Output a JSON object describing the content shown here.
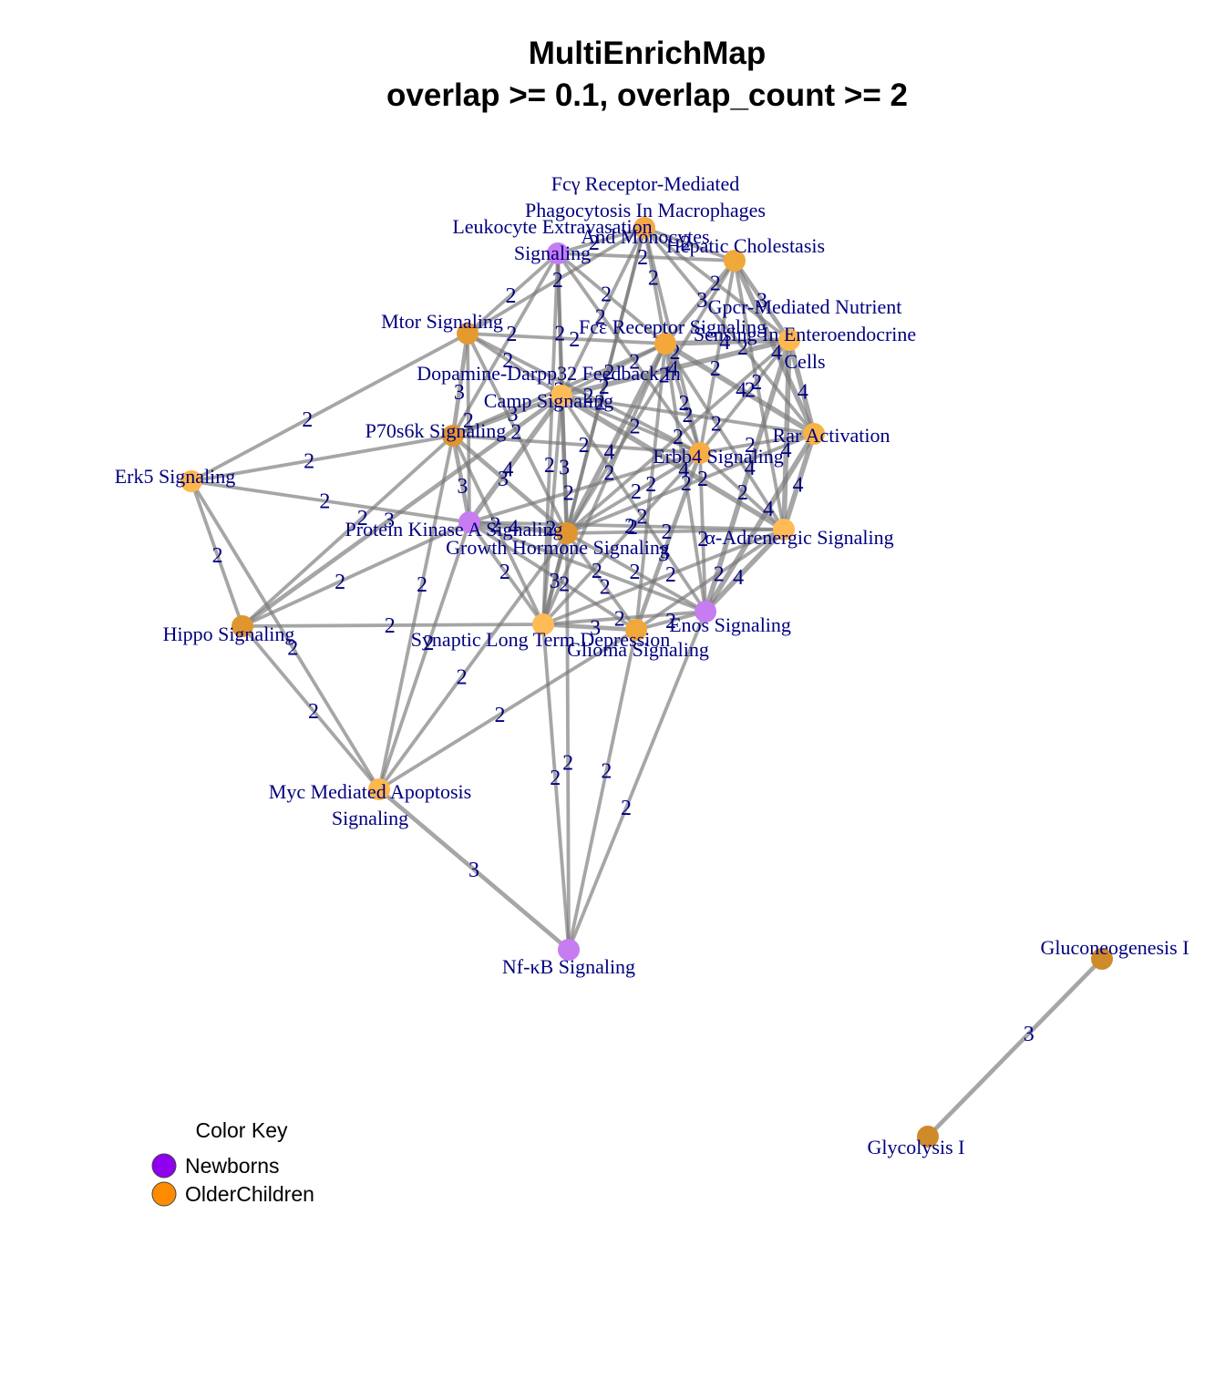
{
  "title_line1": "MultiEnrichMap",
  "title_line2": "overlap >= 0.1, overlap_count >= 2",
  "colors": {
    "newborns": "#9400ff",
    "older_children": "#ff8c00",
    "edge": "#777777",
    "label": "#000080"
  },
  "legend": {
    "title": "Color Key",
    "items": [
      {
        "label": "Newborns",
        "color": "#8f00f0"
      },
      {
        "label": "OlderChildren",
        "color": "#ff8c00"
      }
    ]
  },
  "nodes": [
    {
      "id": "fcg",
      "label": [
        "Fcγ Receptor-Mediated",
        "Phagocytosis In Macrophages",
        "And Monocytes"
      ],
      "color": "#f5a844"
    },
    {
      "id": "leuk",
      "label": [
        "Leukocyte Extravasation",
        "Signaling"
      ],
      "color": "#c77cf2"
    },
    {
      "id": "hep",
      "label": [
        "Hepatic Cholestasis"
      ],
      "color": "#f0a83a"
    },
    {
      "id": "mtor",
      "label": [
        "Mtor Signaling"
      ],
      "color": "#e59a30"
    },
    {
      "id": "fce",
      "label": [
        "Fcε Receptor Signaling"
      ],
      "color": "#f4a83a"
    },
    {
      "id": "gpcr",
      "label": [
        "Gpcr-Mediated Nutrient",
        "Sensing In Enteroendocrine",
        "Cells"
      ],
      "color": "#ffb84d"
    },
    {
      "id": "darpp",
      "label": [
        "Dopamine-Darpp32 Feedback In",
        "Camp Signaling"
      ],
      "color": "#ffbb55"
    },
    {
      "id": "p70",
      "label": [
        "P70s6k Signaling"
      ],
      "color": "#e0952e"
    },
    {
      "id": "rar",
      "label": [
        "Rar Activation"
      ],
      "color": "#f7b345"
    },
    {
      "id": "erk5",
      "label": [
        "Erk5 Signaling"
      ],
      "color": "#ffb84d"
    },
    {
      "id": "erbb4",
      "label": [
        "Erbb4 Signaling"
      ],
      "color": "#f7ad42"
    },
    {
      "id": "pka",
      "label": [
        "Protein Kinase A Signaling"
      ],
      "color": "#c77cf2"
    },
    {
      "id": "gh",
      "label": [
        "Growth Hormone Signaling"
      ],
      "color": "#e0952e"
    },
    {
      "id": "alpha",
      "label": [
        "α-Adrenergic Signaling"
      ],
      "color": "#ffbb55"
    },
    {
      "id": "enos",
      "label": [
        "Enos Signaling"
      ],
      "color": "#c77cf2"
    },
    {
      "id": "hippo",
      "label": [
        "Hippo Signaling"
      ],
      "color": "#e0952e"
    },
    {
      "id": "sltd",
      "label": [
        "Synaptic Long Term Depression"
      ],
      "color": "#ffbb55"
    },
    {
      "id": "glioma",
      "label": [
        "Glioma Signaling"
      ],
      "color": "#f0a83a"
    },
    {
      "id": "myc",
      "label": [
        "Myc Mediated Apoptosis",
        "Signaling"
      ],
      "color": "#ffb84d"
    },
    {
      "id": "nfkb",
      "label": [
        "Nf-κB Signaling"
      ],
      "color": "#c77cf2"
    },
    {
      "id": "gluco",
      "label": [
        "Gluconeogenesis I"
      ],
      "color": "#cf8a2a"
    },
    {
      "id": "glyco",
      "label": [
        "Glycolysis I"
      ],
      "color": "#cf8a2a"
    }
  ],
  "edges": [
    {
      "s": "erk5",
      "t": "mtor",
      "w": 2
    },
    {
      "s": "erk5",
      "t": "p70",
      "w": 2
    },
    {
      "s": "erk5",
      "t": "pka",
      "w": 2
    },
    {
      "s": "erk5",
      "t": "hippo",
      "w": 2
    },
    {
      "s": "erk5",
      "t": "myc",
      "w": 2
    },
    {
      "s": "hippo",
      "t": "p70",
      "w": 2
    },
    {
      "s": "hippo",
      "t": "pka",
      "w": 2
    },
    {
      "s": "hippo",
      "t": "darpp",
      "w": 3
    },
    {
      "s": "hippo",
      "t": "sltd",
      "w": 2
    },
    {
      "s": "hippo",
      "t": "myc",
      "w": 2
    },
    {
      "s": "myc",
      "t": "pka",
      "w": 2
    },
    {
      "s": "myc",
      "t": "p70",
      "w": 2
    },
    {
      "s": "myc",
      "t": "gh",
      "w": 2
    },
    {
      "s": "myc",
      "t": "glioma",
      "w": 2
    },
    {
      "s": "myc",
      "t": "nfkb",
      "w": 3
    },
    {
      "s": "nfkb",
      "t": "sltd",
      "w": 2
    },
    {
      "s": "nfkb",
      "t": "glioma",
      "w": 2
    },
    {
      "s": "nfkb",
      "t": "enos",
      "w": 2
    },
    {
      "s": "nfkb",
      "t": "gh",
      "w": 2
    },
    {
      "s": "mtor",
      "t": "leuk",
      "w": 2
    },
    {
      "s": "mtor",
      "t": "fcg",
      "w": 2
    },
    {
      "s": "mtor",
      "t": "fce",
      "w": 2
    },
    {
      "s": "mtor",
      "t": "p70",
      "w": 3
    },
    {
      "s": "mtor",
      "t": "darpp",
      "w": 2
    },
    {
      "s": "mtor",
      "t": "pka",
      "w": 2
    },
    {
      "s": "mtor",
      "t": "gh",
      "w": 2
    },
    {
      "s": "mtor",
      "t": "erbb4",
      "w": 2
    },
    {
      "s": "p70",
      "t": "darpp",
      "w": 3
    },
    {
      "s": "p70",
      "t": "pka",
      "w": 3
    },
    {
      "s": "p70",
      "t": "gh",
      "w": 3
    },
    {
      "s": "p70",
      "t": "sltd",
      "w": 2
    },
    {
      "s": "p70",
      "t": "fce",
      "w": 2
    },
    {
      "s": "p70",
      "t": "erbb4",
      "w": 2
    },
    {
      "s": "p70",
      "t": "leuk",
      "w": 2
    },
    {
      "s": "pka",
      "t": "darpp",
      "w": 4
    },
    {
      "s": "pka",
      "t": "gh",
      "w": 4
    },
    {
      "s": "pka",
      "t": "sltd",
      "w": 2
    },
    {
      "s": "pka",
      "t": "alpha",
      "w": 2
    },
    {
      "s": "pka",
      "t": "enos",
      "w": 2
    },
    {
      "s": "pka",
      "t": "glioma",
      "w": 2
    },
    {
      "s": "pka",
      "t": "erbb4",
      "w": 2
    },
    {
      "s": "darpp",
      "t": "fce",
      "w": 2
    },
    {
      "s": "darpp",
      "t": "gpcr",
      "w": 4
    },
    {
      "s": "darpp",
      "t": "gh",
      "w": 3
    },
    {
      "s": "darpp",
      "t": "alpha",
      "w": 4
    },
    {
      "s": "darpp",
      "t": "sltd",
      "w": 2
    },
    {
      "s": "darpp",
      "t": "leuk",
      "w": 2
    },
    {
      "s": "darpp",
      "t": "fcg",
      "w": 2
    },
    {
      "s": "darpp",
      "t": "rar",
      "w": 2
    },
    {
      "s": "darpp",
      "t": "erbb4",
      "w": 2
    },
    {
      "s": "darpp",
      "t": "enos",
      "w": 2
    },
    {
      "s": "leuk",
      "t": "fcg",
      "w": 2
    },
    {
      "s": "leuk",
      "t": "fce",
      "w": 2
    },
    {
      "s": "leuk",
      "t": "hep",
      "w": 2
    },
    {
      "s": "leuk",
      "t": "gh",
      "w": 2
    },
    {
      "s": "leuk",
      "t": "erbb4",
      "w": 2
    },
    {
      "s": "leuk",
      "t": "sltd",
      "w": 2
    },
    {
      "s": "fcg",
      "t": "fce",
      "w": 2
    },
    {
      "s": "fcg",
      "t": "hep",
      "w": 2
    },
    {
      "s": "fcg",
      "t": "gpcr",
      "w": 2
    },
    {
      "s": "fcg",
      "t": "gh",
      "w": 2
    },
    {
      "s": "fcg",
      "t": "erbb4",
      "w": 2
    },
    {
      "s": "fcg",
      "t": "rar",
      "w": 2
    },
    {
      "s": "fcg",
      "t": "sltd",
      "w": 2
    },
    {
      "s": "hep",
      "t": "fce",
      "w": 3
    },
    {
      "s": "hep",
      "t": "gpcr",
      "w": 3
    },
    {
      "s": "hep",
      "t": "rar",
      "w": 4
    },
    {
      "s": "hep",
      "t": "erbb4",
      "w": 2
    },
    {
      "s": "hep",
      "t": "gh",
      "w": 2
    },
    {
      "s": "hep",
      "t": "alpha",
      "w": 2
    },
    {
      "s": "fce",
      "t": "gpcr",
      "w": 4
    },
    {
      "s": "fce",
      "t": "rar",
      "w": 4
    },
    {
      "s": "fce",
      "t": "erbb4",
      "w": 2
    },
    {
      "s": "fce",
      "t": "gh",
      "w": 4
    },
    {
      "s": "fce",
      "t": "alpha",
      "w": 2
    },
    {
      "s": "fce",
      "t": "sltd",
      "w": 2
    },
    {
      "s": "fce",
      "t": "glioma",
      "w": 2
    },
    {
      "s": "fce",
      "t": "enos",
      "w": 2
    },
    {
      "s": "gpcr",
      "t": "rar",
      "w": 4
    },
    {
      "s": "gpcr",
      "t": "alpha",
      "w": 4
    },
    {
      "s": "gpcr",
      "t": "erbb4",
      "w": 2
    },
    {
      "s": "gpcr",
      "t": "enos",
      "w": 4
    },
    {
      "s": "gpcr",
      "t": "gh",
      "w": 2
    },
    {
      "s": "rar",
      "t": "alpha",
      "w": 4
    },
    {
      "s": "rar",
      "t": "erbb4",
      "w": 2
    },
    {
      "s": "rar",
      "t": "enos",
      "w": 4
    },
    {
      "s": "rar",
      "t": "gh",
      "w": 2
    },
    {
      "s": "erbb4",
      "t": "gh",
      "w": 2
    },
    {
      "s": "erbb4",
      "t": "alpha",
      "w": 2
    },
    {
      "s": "erbb4",
      "t": "enos",
      "w": 2
    },
    {
      "s": "erbb4",
      "t": "glioma",
      "w": 3
    },
    {
      "s": "erbb4",
      "t": "sltd",
      "w": 2
    },
    {
      "s": "gh",
      "t": "alpha",
      "w": 2
    },
    {
      "s": "gh",
      "t": "enos",
      "w": 2
    },
    {
      "s": "gh",
      "t": "sltd",
      "w": 3
    },
    {
      "s": "gh",
      "t": "glioma",
      "w": 2
    },
    {
      "s": "alpha",
      "t": "enos",
      "w": 4
    },
    {
      "s": "alpha",
      "t": "glioma",
      "w": 2
    },
    {
      "s": "alpha",
      "t": "sltd",
      "w": 2
    },
    {
      "s": "enos",
      "t": "glioma",
      "w": 2
    },
    {
      "s": "enos",
      "t": "sltd",
      "w": 2
    },
    {
      "s": "sltd",
      "t": "glioma",
      "w": 3
    },
    {
      "s": "gluco",
      "t": "glyco",
      "w": 3
    }
  ]
}
